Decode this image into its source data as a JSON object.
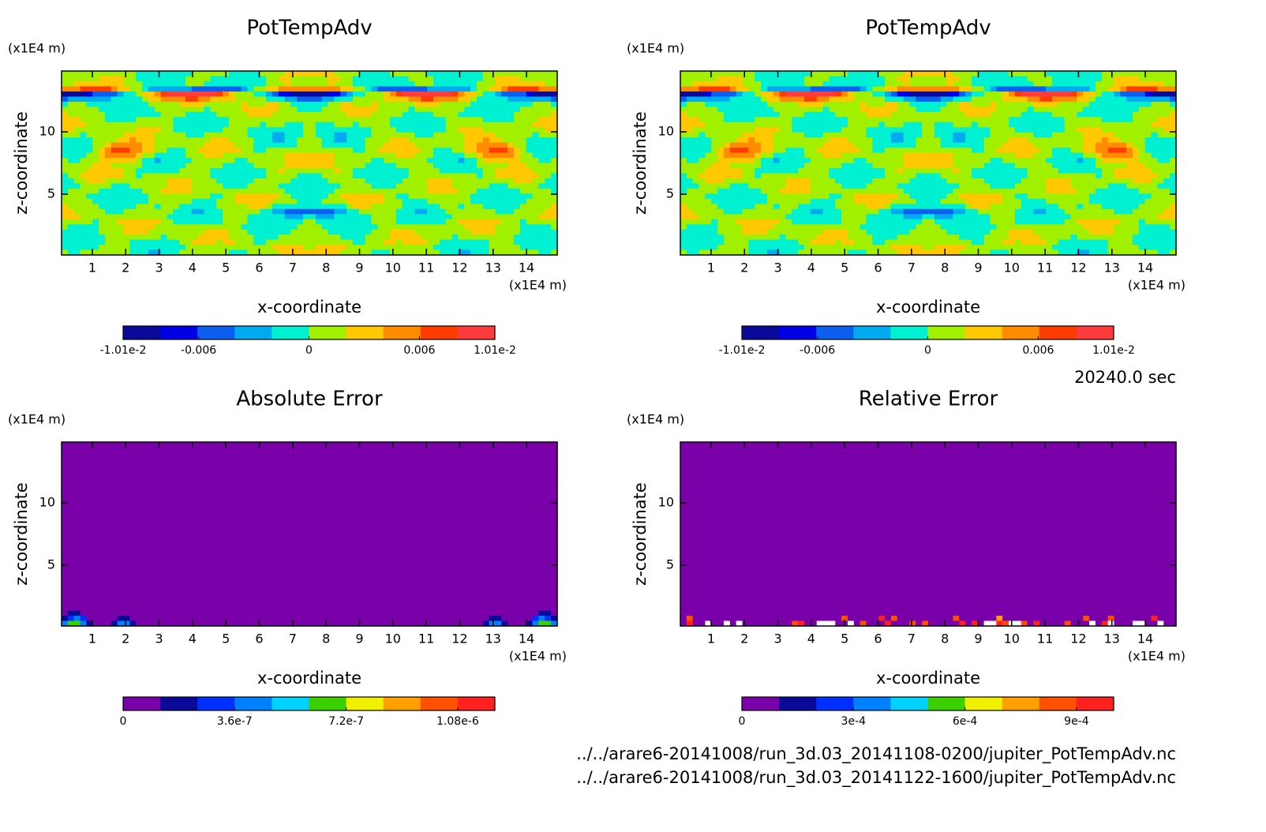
{
  "chart_data": [
    {
      "type": "contour",
      "title": "PotTempAdv",
      "x_label": "x-coordinate",
      "y_label": "z-coordinate",
      "x_unit": "(x1E4 m)",
      "y_unit": "(x1E4 m)",
      "xlim": [
        0.08,
        14.92
      ],
      "ylim": [
        0.13,
        14.87
      ],
      "xticks": [
        1,
        2,
        3,
        4,
        5,
        6,
        7,
        8,
        9,
        10,
        11,
        12,
        13,
        14
      ],
      "yticks": [
        5,
        10
      ],
      "colorbar": {
        "lim": [
          -0.0101,
          0.0101
        ],
        "colors": [
          "#0a0a9a",
          "#0000e6",
          "#0a5ff0",
          "#00aaf0",
          "#00f0d2",
          "#a0f000",
          "#ffc800",
          "#ff8c00",
          "#ff3c00",
          "#ff3c3c"
        ],
        "ticks": [
          {
            "value": -0.0101,
            "label": "-1.01e-2"
          },
          -0.006,
          0,
          0.006,
          {
            "value": 0.0101,
            "label": "1.01e-2"
          }
        ]
      }
    },
    {
      "type": "contour",
      "title": "PotTempAdv",
      "x_label": "x-coordinate",
      "y_label": "z-coordinate",
      "x_unit": "(x1E4 m)",
      "y_unit": "(x1E4 m)",
      "xlim": [
        0.08,
        14.92
      ],
      "ylim": [
        0.13,
        14.87
      ],
      "xticks": [
        1,
        2,
        3,
        4,
        5,
        6,
        7,
        8,
        9,
        10,
        11,
        12,
        13,
        14
      ],
      "yticks": [
        5,
        10
      ],
      "colorbar": {
        "lim": [
          -0.0101,
          0.0101
        ],
        "colors": [
          "#0a0a9a",
          "#0000e6",
          "#0a5ff0",
          "#00aaf0",
          "#00f0d2",
          "#a0f000",
          "#ffc800",
          "#ff8c00",
          "#ff3c00",
          "#ff3c3c"
        ],
        "ticks": [
          {
            "value": -0.0101,
            "label": "-1.01e-2"
          },
          -0.006,
          0,
          0.006,
          {
            "value": 0.0101,
            "label": "1.01e-2"
          }
        ]
      }
    },
    {
      "type": "contour",
      "title": "Absolute Error",
      "x_label": "x-coordinate",
      "y_label": "z-coordinate",
      "x_unit": "(x1E4 m)",
      "y_unit": "(x1E4 m)",
      "xlim": [
        0.08,
        14.92
      ],
      "ylim": [
        0.13,
        14.87
      ],
      "xticks": [
        1,
        2,
        3,
        4,
        5,
        6,
        7,
        8,
        9,
        10,
        11,
        12,
        13,
        14
      ],
      "yticks": [
        5,
        10
      ],
      "colorbar": {
        "lim": [
          0,
          1.2e-06
        ],
        "colors": [
          "#7a00aa",
          "#0a0a9a",
          "#0030ff",
          "#0080ff",
          "#00d2ff",
          "#3cd000",
          "#f0f000",
          "#ffa000",
          "#ff5000",
          "#ff2020"
        ],
        "ticks": [
          0,
          3.6e-07,
          7.2e-07,
          {
            "value": 1.08e-06,
            "label": "1.08e-6"
          }
        ]
      }
    },
    {
      "type": "contour",
      "title": "Relative Error",
      "x_label": "x-coordinate",
      "y_label": "z-coordinate",
      "x_unit": "(x1E4 m)",
      "y_unit": "(x1E4 m)",
      "xlim": [
        0.08,
        14.92
      ],
      "ylim": [
        0.13,
        14.87
      ],
      "xticks": [
        1,
        2,
        3,
        4,
        5,
        6,
        7,
        8,
        9,
        10,
        11,
        12,
        13,
        14
      ],
      "yticks": [
        5,
        10
      ],
      "colorbar": {
        "lim": [
          0,
          0.001
        ],
        "colors": [
          "#7a00aa",
          "#0a0a9a",
          "#0030ff",
          "#0080ff",
          "#00d2ff",
          "#3cd000",
          "#f0f000",
          "#ffa000",
          "#ff5000",
          "#ff2020"
        ],
        "ticks": [
          0,
          {
            "value": 0.0003,
            "label": "3e-4"
          },
          {
            "value": 0.0006,
            "label": "6e-4"
          },
          {
            "value": 0.0009,
            "label": "9e-4"
          }
        ]
      }
    }
  ],
  "footer": {
    "time": "20240.0 sec",
    "files": [
      "../../arare6-20141008/run_3d.03_20141108-0200/jupiter_PotTempAdv.nc",
      "../../arare6-20141008/run_3d.03_20141122-1600/jupiter_PotTempAdv.nc"
    ]
  }
}
